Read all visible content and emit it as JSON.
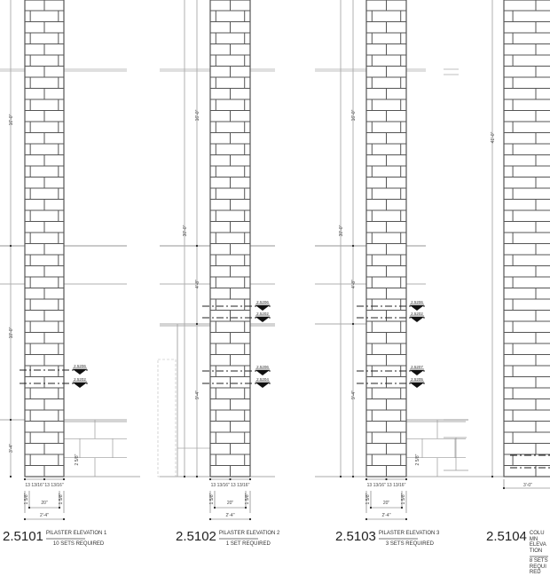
{
  "panels": [
    {
      "number": "2.5101",
      "title": "PILASTER ELEVATION 1",
      "sets": "10 SETS REQUIRED",
      "dims": [
        "16'-0\"",
        "10'-0\"",
        "3'-4\""
      ],
      "markers": [
        "2.5206",
        "2.5202"
      ]
    },
    {
      "number": "2.5102",
      "title": "PILASTER ELEVATION 2",
      "sets": "1 SET REQUIRED",
      "dims": [
        "30'-0\"",
        "16'-0\"",
        "4'-8\"",
        "9'-4\""
      ],
      "markers": [
        "2.5206",
        "2.5202",
        "2.5206",
        "2.5204"
      ]
    },
    {
      "number": "2.5103",
      "title": "PILASTER ELEVATION 3",
      "sets": "3 SETS REQUIRED",
      "dims": [
        "30'-0\"",
        "16'-0\"",
        "4'-8\"",
        "9'-4\""
      ],
      "markers": [
        "2.5206",
        "2.5202",
        "2.5207",
        "2.5205"
      ]
    },
    {
      "number": "2.5104",
      "title": "COLUMN ELEVATION",
      "sets": "8 SETS REQUIRED",
      "dims": [
        "41'-0\"",
        "3'-0\""
      ],
      "markers": []
    }
  ],
  "base_dims": {
    "half": "13 13/16\"",
    "edge": "1 5/8\"",
    "inner": "20\"",
    "overall": "2'-4\""
  },
  "wall_note": "2 5/8\"",
  "colors": {
    "line": "#555555",
    "light": "#aaaaaa"
  }
}
